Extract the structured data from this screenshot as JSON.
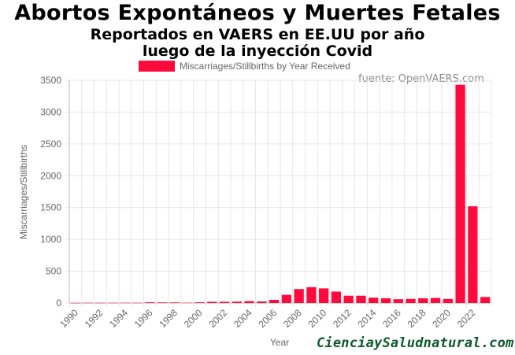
{
  "header": {
    "title": "Abortos Expontáneos y Muertes Fetales",
    "subtitle_line1": "Reportados en VAERS en EE.UU por año",
    "subtitle_line2": "luego de la inyección Covid"
  },
  "source_label": "fuente: OpenVAERS.com",
  "watermark": "CienciaySaludnatural.com",
  "colors": {
    "bar": "#ff0a3c",
    "grid": "#e6e6e6",
    "axis": "#bbbbbb"
  },
  "chart_data": {
    "type": "bar",
    "title": "Abortos Expontáneos y Muertes Fetales",
    "xlabel": "Year",
    "ylabel": "Miscarriages/Stillbirths",
    "ylim": [
      0,
      3500
    ],
    "yticks": [
      0,
      500,
      1000,
      1500,
      2000,
      2500,
      3000,
      3500
    ],
    "grid": true,
    "legend_position": "top-center",
    "x_tick_labels": [
      "1990",
      "1992",
      "1994",
      "1996",
      "1998",
      "2000",
      "2002",
      "2004",
      "2006",
      "2008",
      "2010",
      "2012",
      "2014",
      "2016",
      "2018",
      "2020",
      "2022"
    ],
    "categories": [
      "1990",
      "1991",
      "1992",
      "1993",
      "1994",
      "1995",
      "1996",
      "1997",
      "1998",
      "1999",
      "2000",
      "2001",
      "2002",
      "2003",
      "2004",
      "2005",
      "2006",
      "2007",
      "2008",
      "2009",
      "2010",
      "2011",
      "2012",
      "2013",
      "2014",
      "2015",
      "2016",
      "2017",
      "2018",
      "2019",
      "2020",
      "2021",
      "2022",
      "2023"
    ],
    "series": [
      {
        "name": "Miscarriages/Stillbirths by Year Received",
        "values": [
          2,
          3,
          3,
          4,
          4,
          4,
          12,
          10,
          10,
          5,
          12,
          20,
          20,
          22,
          30,
          25,
          50,
          130,
          220,
          250,
          230,
          180,
          115,
          115,
          85,
          75,
          60,
          65,
          75,
          80,
          65,
          3430,
          1520,
          95
        ]
      }
    ]
  }
}
